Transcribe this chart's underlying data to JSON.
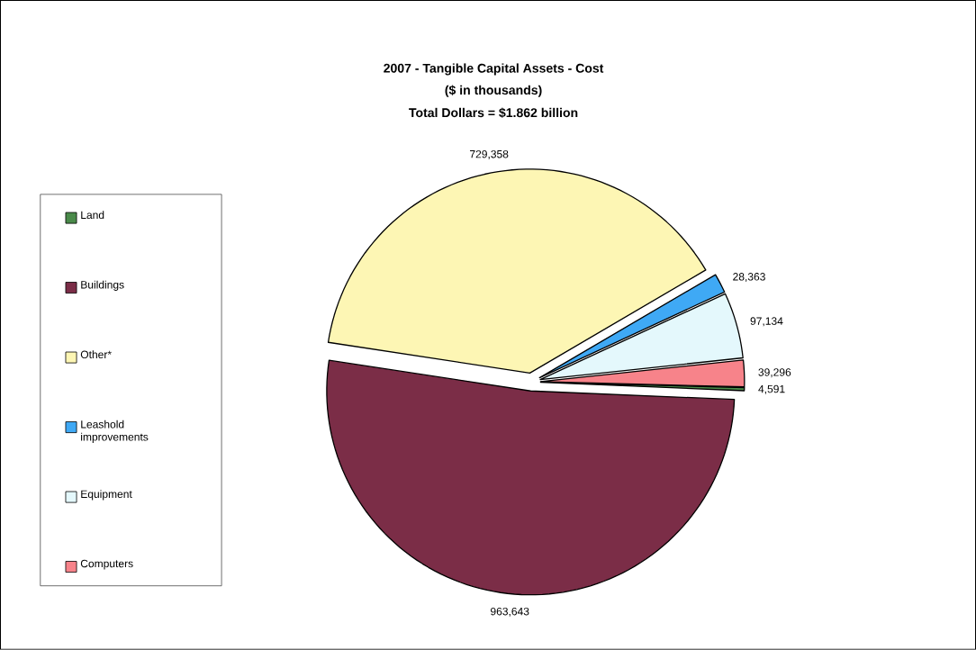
{
  "chart_data": {
    "type": "pie",
    "title": "2007 - Tangible Capital Assets - Cost",
    "subtitle": "($ in thousands)",
    "annotations": [
      "Total Dollars = $1.862 billion"
    ],
    "categories": [
      "Land",
      "Buildings",
      "Other*",
      "Leashold improvements",
      "Equipment",
      "Computers"
    ],
    "values": [
      4591,
      963643,
      729358,
      28363,
      97134,
      39296
    ],
    "value_labels": [
      "4,591",
      "963,643",
      "729,358",
      "28,363",
      "97,134",
      "39,296"
    ],
    "colors": [
      "#4a8a4a",
      "#7b2d47",
      "#fdf6b4",
      "#3fa9f5",
      "#e4f8fc",
      "#f7838a"
    ],
    "legend": "left"
  }
}
